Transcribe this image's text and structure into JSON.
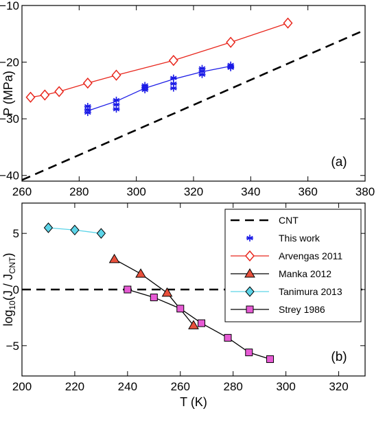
{
  "chart_data": [
    {
      "type": "line",
      "panel_label": "(a)",
      "xlim": [
        260,
        380
      ],
      "ylim": [
        -41,
        -10
      ],
      "x_ticks": [
        260,
        280,
        300,
        320,
        340,
        360,
        380
      ],
      "y_ticks": [
        -40,
        -30,
        -20,
        -10
      ],
      "xlabel": "",
      "ylabel": "P (MPa)",
      "grid": false,
      "series": [
        {
          "name": "CNT",
          "style": "dashed",
          "color": "#000000",
          "x": [
            260,
            380
          ],
          "y": [
            -40.8,
            -14.3
          ]
        },
        {
          "name": "This work",
          "style": "line+star",
          "color": "#1a1ae6",
          "x": [
            283,
            293,
            303,
            313,
            323,
            333
          ],
          "y": [
            -28.6,
            -26.9,
            -24.6,
            -23.0,
            -21.7,
            -20.7
          ],
          "scatter_y": [
            [
              -27.8,
              -28.4,
              -28.9
            ],
            [
              -26.7,
              -27.5,
              -28.3
            ],
            [
              -24.1,
              -24.5,
              -24.9
            ],
            [
              -22.8,
              -23.8,
              -24.6
            ],
            [
              -21.1,
              -21.6,
              -22.2
            ],
            [
              -20.5,
              -20.8,
              -21.0
            ]
          ]
        },
        {
          "name": "Arvengas 2011",
          "style": "line+diamond",
          "color": "#e8261c",
          "x": [
            263,
            268,
            273,
            283,
            293,
            313,
            333,
            353
          ],
          "y": [
            -26.2,
            -25.8,
            -25.2,
            -23.7,
            -22.3,
            -19.7,
            -16.5,
            -13.1
          ]
        }
      ]
    },
    {
      "type": "line",
      "panel_label": "(b)",
      "xlim": [
        200,
        330
      ],
      "ylim": [
        -7.7,
        7.7
      ],
      "x_ticks": [
        200,
        220,
        240,
        260,
        280,
        300,
        320
      ],
      "y_ticks": [
        -5,
        0,
        5
      ],
      "xlabel": "T (K)",
      "ylabel_parts": [
        "log",
        "10",
        "(J / J",
        "CNT",
        ")"
      ],
      "grid": false,
      "legend_position": "top-right",
      "series": [
        {
          "name": "CNT",
          "style": "dashed",
          "color": "#000000",
          "x": [
            200,
            330
          ],
          "y": [
            0,
            0
          ]
        },
        {
          "name": "Manka 2012",
          "style": "line+triangle",
          "color": "#e8503c",
          "x": [
            235,
            245,
            255,
            265
          ],
          "y": [
            2.7,
            1.4,
            -0.3,
            -3.2
          ]
        },
        {
          "name": "Tanimura 2013",
          "style": "line+diamond",
          "color": "#5cd4e8",
          "x": [
            210,
            220,
            230
          ],
          "y": [
            5.5,
            5.3,
            5.0
          ]
        },
        {
          "name": "Strey 1986",
          "style": "line+square",
          "color": "#e65ad4",
          "x": [
            240,
            250,
            260,
            268,
            278,
            286,
            294
          ],
          "y": [
            0.0,
            -0.7,
            -1.7,
            -3.0,
            -4.3,
            -5.6,
            -6.2
          ]
        }
      ],
      "legend": [
        {
          "name": "CNT",
          "marker": "dashed"
        },
        {
          "name": "This work",
          "marker": "star"
        },
        {
          "name": "Arvengas 2011",
          "marker": "diamond-open"
        },
        {
          "name": "Manka 2012",
          "marker": "triangle"
        },
        {
          "name": "Tanimura 2013",
          "marker": "diamond"
        },
        {
          "name": "Strey 1986",
          "marker": "square"
        }
      ]
    }
  ]
}
